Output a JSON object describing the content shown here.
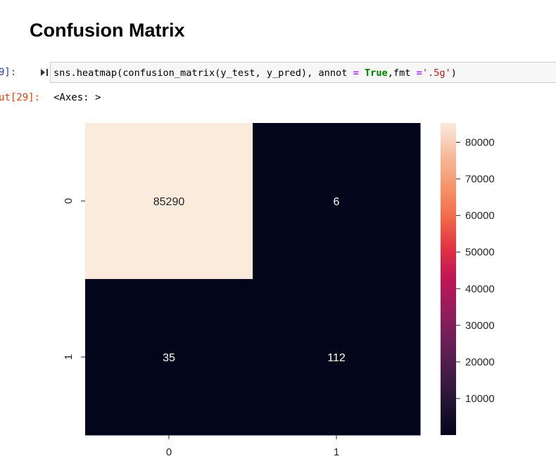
{
  "notebook": {
    "heading": "Confusion Matrix",
    "input_prompt": "9]:",
    "code": {
      "prefix": "sns.heatmap(confusion_matrix(y_test, y_pred), annot ",
      "eq1": "=",
      "kw": "True",
      "mid": ",fmt ",
      "eq2": "=",
      "str": "'.5g'",
      "suffix": ")"
    },
    "output_prompt": "ut[29]:",
    "output_text": "<Axes: >"
  },
  "chart_data": {
    "type": "heatmap",
    "title": "",
    "xlabel": "",
    "ylabel": "",
    "x_categories": [
      "0",
      "1"
    ],
    "y_categories": [
      "0",
      "1"
    ],
    "values": [
      [
        85290,
        6
      ],
      [
        35,
        112
      ]
    ],
    "annotations": [
      [
        "85290",
        "6"
      ],
      [
        "35",
        "112"
      ]
    ],
    "colormap": "rocket",
    "colorbar": {
      "ticks": [
        10000,
        20000,
        30000,
        40000,
        50000,
        60000,
        70000,
        80000
      ],
      "tick_labels": [
        "10000",
        "20000",
        "30000",
        "40000",
        "50000",
        "60000",
        "70000",
        "80000"
      ],
      "range": [
        6,
        85290
      ]
    },
    "annotation_colors": {
      "light_cell": "#262626",
      "dark_cell": "#ffffff"
    },
    "axis_text_color": "#262626",
    "grid": false
  }
}
